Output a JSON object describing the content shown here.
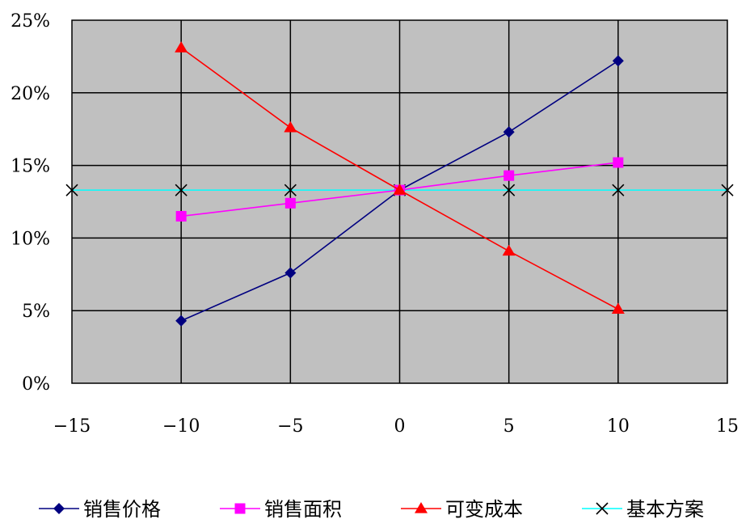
{
  "chart_data": {
    "type": "line",
    "title": "",
    "xlabel": "",
    "ylabel": "",
    "xlim": [
      -15,
      15
    ],
    "ylim": [
      0,
      0.25
    ],
    "x_ticks": [
      -15,
      -10,
      -5,
      0,
      5,
      10,
      15
    ],
    "x_tick_labels": [
      "−15",
      "−10",
      "−5",
      "0",
      "5",
      "10",
      "15"
    ],
    "y_ticks": [
      0,
      0.05,
      0.1,
      0.15,
      0.2,
      0.25
    ],
    "y_tick_labels": [
      "0%",
      "5%",
      "10%",
      "15%",
      "20%",
      "25%"
    ],
    "grid": true,
    "plot_background": "#c0c0c0",
    "legend_position": "bottom",
    "series": [
      {
        "name": "销售价格",
        "color": "#000080",
        "marker": "diamond",
        "x": [
          -10,
          -5,
          0,
          5,
          10
        ],
        "y": [
          0.043,
          0.076,
          0.133,
          0.173,
          0.222
        ]
      },
      {
        "name": "销售面积",
        "color": "#ff00ff",
        "marker": "square",
        "x": [
          -10,
          -5,
          0,
          5,
          10
        ],
        "y": [
          0.115,
          0.124,
          0.133,
          0.143,
          0.152
        ]
      },
      {
        "name": "可变成本",
        "color": "#ff0000",
        "marker": "triangle",
        "x": [
          -10,
          -5,
          0,
          5,
          10
        ],
        "y": [
          0.231,
          0.176,
          0.133,
          0.091,
          0.051
        ]
      },
      {
        "name": "基本方案",
        "color": "#00ffff",
        "marker": "x",
        "x": [
          -15,
          -10,
          -5,
          0,
          5,
          10,
          15
        ],
        "y": [
          0.133,
          0.133,
          0.133,
          0.133,
          0.133,
          0.133,
          0.133
        ]
      }
    ]
  }
}
